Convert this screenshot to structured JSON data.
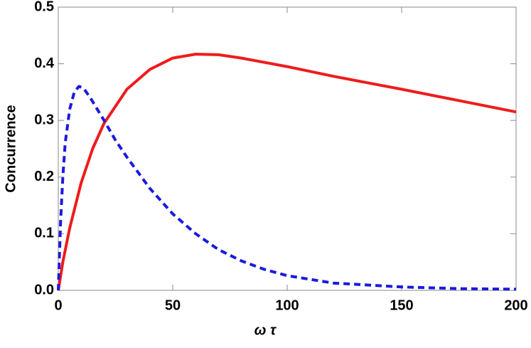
{
  "chart_data": {
    "type": "line",
    "xlabel": "ω τ",
    "ylabel": "Concurrence",
    "xlim": [
      0,
      200
    ],
    "ylim": [
      0,
      0.5
    ],
    "xticks": [
      0,
      50,
      100,
      150,
      200
    ],
    "yticks": [
      {
        "value": 0,
        "label": "0.0"
      },
      0.1,
      0.2,
      0.3,
      0.4,
      0.5
    ],
    "series": [
      {
        "color": "#ee1c1c",
        "dash": "solid",
        "x": [
          0,
          2,
          5,
          10,
          15,
          20,
          30,
          40,
          50,
          60,
          70,
          80,
          100,
          120,
          150,
          175,
          200
        ],
        "values": [
          0,
          0.05,
          0.11,
          0.19,
          0.25,
          0.295,
          0.355,
          0.39,
          0.41,
          0.417,
          0.416,
          0.41,
          0.395,
          0.378,
          0.355,
          0.335,
          0.315
        ]
      },
      {
        "color": "#1a1adf",
        "dash": "dashed",
        "x": [
          0,
          1,
          2,
          3,
          5,
          7,
          9,
          11,
          14,
          17,
          20,
          25,
          30,
          40,
          50,
          60,
          70,
          80,
          90,
          100,
          120,
          150,
          175,
          200
        ],
        "values": [
          0,
          0.12,
          0.2,
          0.26,
          0.32,
          0.35,
          0.36,
          0.357,
          0.34,
          0.32,
          0.3,
          0.265,
          0.235,
          0.18,
          0.135,
          0.1,
          0.072,
          0.052,
          0.037,
          0.026,
          0.013,
          0.006,
          0.003,
          0.002
        ]
      }
    ]
  }
}
